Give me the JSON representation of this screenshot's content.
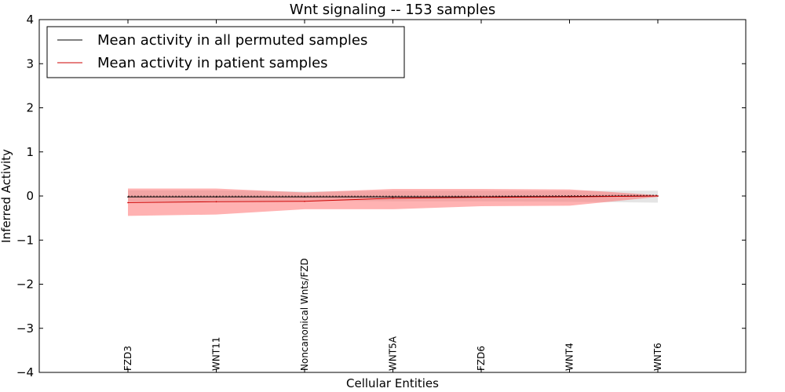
{
  "chart_data": {
    "type": "line",
    "title": "Wnt signaling -- 153 samples",
    "xlabel": "Cellular Entities",
    "ylabel": "Inferred Activity",
    "ylim": [
      -4,
      4
    ],
    "yticks": [
      4,
      3,
      2,
      1,
      0,
      -1,
      -2,
      -3,
      -4
    ],
    "ytick_labels": [
      "4",
      "3",
      "2",
      "1",
      "0",
      "−1",
      "−2",
      "−3",
      "−4"
    ],
    "categories": [
      "FZD3",
      "WNT11",
      "Noncanonical Wnts/FZD",
      "WNT5A",
      "FZD6",
      "WNT4",
      "WNT6"
    ],
    "legend_position": "top-left",
    "series": [
      {
        "name": "Mean activity in all permuted samples",
        "color": "#000000",
        "values": [
          -0.02,
          -0.02,
          -0.02,
          -0.02,
          -0.02,
          -0.01,
          0.0
        ],
        "band_upper": [
          0.13,
          0.13,
          0.1,
          0.12,
          0.12,
          0.12,
          0.12
        ],
        "band_lower": [
          -0.13,
          -0.13,
          -0.1,
          -0.12,
          -0.12,
          -0.13,
          -0.15
        ],
        "band_color": "#bfbfbf"
      },
      {
        "name": "Mean activity in patient samples",
        "color": "#cc0000",
        "values": [
          -0.15,
          -0.13,
          -0.12,
          -0.05,
          -0.03,
          -0.02,
          0.0
        ],
        "band_upper": [
          0.17,
          0.17,
          0.08,
          0.16,
          0.16,
          0.15,
          0.02
        ],
        "band_lower": [
          -0.45,
          -0.42,
          -0.3,
          -0.3,
          -0.23,
          -0.22,
          -0.02
        ],
        "band_color": "#ff6666"
      }
    ]
  }
}
